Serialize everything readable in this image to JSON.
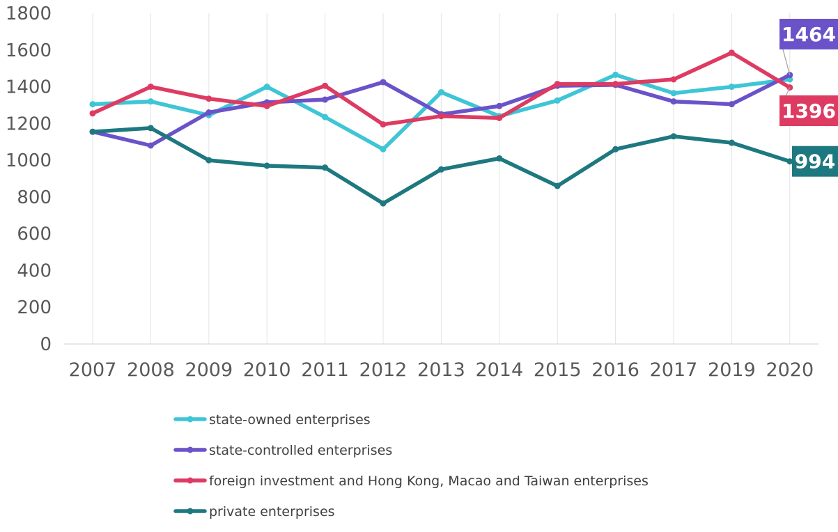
{
  "chart_data": {
    "type": "line",
    "title": "",
    "xlabel": "",
    "ylabel": "",
    "categories": [
      "2007",
      "2008",
      "2009",
      "2010",
      "2011",
      "2012",
      "2013",
      "2014",
      "2015",
      "2016",
      "2017",
      "2019",
      "2020"
    ],
    "ylim": [
      0,
      1800
    ],
    "yticks": [
      0,
      200,
      400,
      600,
      800,
      1000,
      1200,
      1400,
      1600,
      1800
    ],
    "grid": "vertical",
    "legend_position": "bottom",
    "series": [
      {
        "name": "state-owned enterprises",
        "color": "#3EC5D6",
        "values": [
          1305,
          1320,
          1245,
          1400,
          1235,
          1060,
          1370,
          1240,
          1325,
          1465,
          1365,
          1400,
          1440
        ]
      },
      {
        "name": "state-controlled enterprises",
        "color": "#6A53C9",
        "values": [
          1155,
          1080,
          1260,
          1315,
          1330,
          1425,
          1250,
          1295,
          1405,
          1410,
          1320,
          1305,
          1464
        ]
      },
      {
        "name": "foreign investment and Hong Kong, Macao and Taiwan enterprises",
        "color": "#DE3B62",
        "values": [
          1255,
          1400,
          1335,
          1295,
          1405,
          1195,
          1240,
          1230,
          1415,
          1415,
          1440,
          1585,
          1396
        ]
      },
      {
        "name": "private enterprises",
        "color": "#1E7880",
        "values": [
          1155,
          1175,
          1000,
          970,
          960,
          765,
          950,
          1010,
          860,
          1060,
          1130,
          1095,
          994
        ]
      }
    ],
    "annotations": [
      {
        "text": "1464",
        "series": 1,
        "color": "#6A53C9"
      },
      {
        "text": "1396",
        "series": 2,
        "color": "#DE3B62"
      },
      {
        "text": "994",
        "series": 3,
        "color": "#1E7880"
      }
    ]
  }
}
